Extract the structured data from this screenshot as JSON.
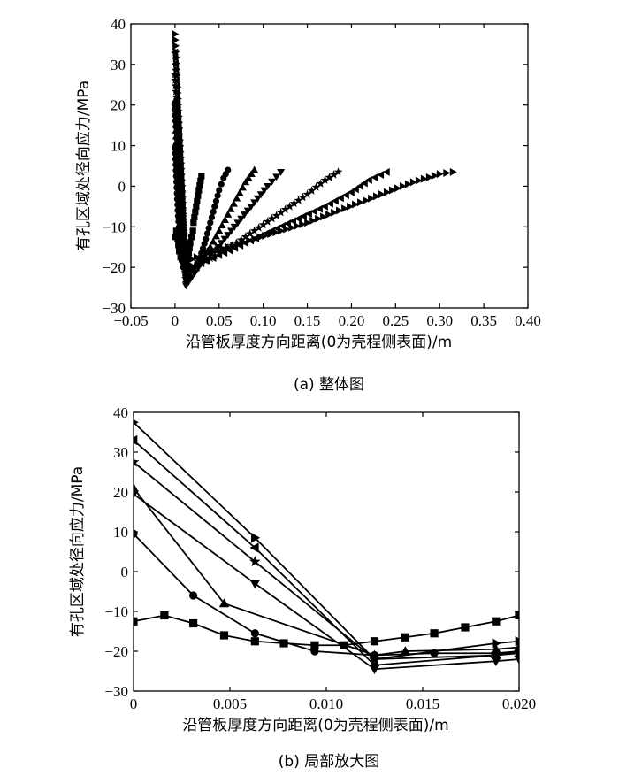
{
  "chart_data": [
    {
      "type": "scatter",
      "caption": "(a) 整体图",
      "xlabel": "沿管板厚度方向距离(0为壳程侧表面)/m",
      "ylabel": "有孔区域处径向应力/MPa",
      "xlim": [
        -0.05,
        0.4
      ],
      "ylim": [
        -30,
        40
      ],
      "xticks": [
        "−0.05",
        "0",
        "0.05",
        "0.10",
        "0.15",
        "0.20",
        "0.25",
        "0.30",
        "0.35",
        "0.40"
      ],
      "xtick_values": [
        -0.05,
        0,
        0.05,
        0.1,
        0.15,
        0.2,
        0.25,
        0.3,
        0.35,
        0.4
      ],
      "yticks": [
        "40",
        "30",
        "20",
        "10",
        "0",
        "−10",
        "−20",
        "−30"
      ],
      "ytick_values": [
        40,
        30,
        20,
        10,
        0,
        -10,
        -20,
        -30
      ],
      "series": [
        {
          "name": "square",
          "marker": "square",
          "dense": true,
          "x": [
            0,
            0.0015,
            0.003,
            0.0047,
            0.0063,
            0.0078,
            0.0094,
            0.011,
            0.0125,
            0.0141,
            0.0156,
            0.0172,
            0.0188,
            0.0203,
            0.021,
            0.024,
            0.027,
            0.03
          ],
          "y": [
            -12.5,
            -11,
            -13,
            -16,
            -17.5,
            -18,
            -18.5,
            -18.5,
            -18,
            -17,
            -16.5,
            -14,
            -12.5,
            -11,
            -9,
            -5,
            -1,
            2.5
          ]
        },
        {
          "name": "circle",
          "marker": "circle",
          "dense": true,
          "x": [
            0,
            0.0031,
            0.0063,
            0.0094,
            0.0125,
            0.0156,
            0.0188,
            0.025,
            0.03,
            0.035,
            0.04,
            0.045,
            0.05,
            0.055,
            0.06
          ],
          "y": [
            9.5,
            -6,
            -15.5,
            -20,
            -21,
            -20.5,
            -20.5,
            -19,
            -16.5,
            -13,
            -9,
            -5,
            -1,
            2,
            4
          ]
        },
        {
          "name": "triangle-up",
          "marker": "triangle-up",
          "dense": true,
          "x": [
            0,
            0.0047,
            0.0125,
            0.014,
            0.0188,
            0.03,
            0.04,
            0.05,
            0.06,
            0.07,
            0.08,
            0.09
          ],
          "y": [
            21,
            -8,
            -21,
            -20,
            -20,
            -18,
            -15,
            -11,
            -7,
            -3,
            1,
            4
          ]
        },
        {
          "name": "triangle-down",
          "marker": "triangle-down",
          "dense": true,
          "x": [
            0,
            0.0063,
            0.0125,
            0.0188,
            0.03,
            0.045,
            0.06,
            0.075,
            0.09,
            0.105,
            0.12
          ],
          "y": [
            19.5,
            -3,
            -24.5,
            -22.5,
            -19,
            -16,
            -12,
            -8,
            -4,
            0,
            3.5
          ]
        },
        {
          "name": "star",
          "marker": "star",
          "dense": true,
          "x": [
            0,
            0.0063,
            0.0125,
            0.0188,
            0.03,
            0.05,
            0.07,
            0.09,
            0.11,
            0.13,
            0.15,
            0.17,
            0.185
          ],
          "y": [
            27.5,
            2.5,
            -22,
            -21,
            -19,
            -16.5,
            -14,
            -11,
            -8,
            -5,
            -2,
            1.5,
            3.5
          ]
        },
        {
          "name": "triangle-left",
          "marker": "triangle-left",
          "dense": true,
          "x": [
            0,
            0.0063,
            0.0125,
            0.0188,
            0.03,
            0.05,
            0.08,
            0.11,
            0.14,
            0.17,
            0.2,
            0.22,
            0.24
          ],
          "y": [
            33,
            6,
            -23.5,
            -21,
            -19,
            -17,
            -14,
            -11,
            -8,
            -5,
            -1.5,
            1.5,
            3.5
          ]
        },
        {
          "name": "triangle-right",
          "marker": "triangle-right",
          "dense": true,
          "x": [
            0,
            0.0063,
            0.0125,
            0.0188,
            0.03,
            0.06,
            0.09,
            0.12,
            0.15,
            0.18,
            0.21,
            0.24,
            0.27,
            0.3,
            0.315
          ],
          "y": [
            37.5,
            8.5,
            -22,
            -18,
            -17,
            -15,
            -13,
            -11,
            -9,
            -6.5,
            -4,
            -1.5,
            1,
            3,
            3.5
          ]
        }
      ]
    },
    {
      "type": "line",
      "caption": "(b) 局部放大图",
      "xlabel": "沿管板厚度方向距离(0为壳程侧表面)/m",
      "ylabel": "有孔区域处径向应力/MPa",
      "xlim": [
        0,
        0.02
      ],
      "ylim": [
        -30,
        40
      ],
      "xticks": [
        "0",
        "0.005",
        "0.010",
        "0.015",
        "0.020"
      ],
      "xtick_values": [
        0,
        0.005,
        0.01,
        0.015,
        0.02
      ],
      "yticks": [
        "40",
        "30",
        "20",
        "10",
        "0",
        "−10",
        "−20",
        "−30"
      ],
      "ytick_values": [
        40,
        30,
        20,
        10,
        0,
        -10,
        -20,
        -30
      ],
      "series": [
        {
          "name": "square",
          "marker": "square",
          "x": [
            0,
            0.0016,
            0.0031,
            0.0047,
            0.0063,
            0.0078,
            0.0094,
            0.0109,
            0.0125,
            0.0141,
            0.0156,
            0.0172,
            0.0188,
            0.02
          ],
          "y": [
            -12.5,
            -11,
            -13,
            -16,
            -17.5,
            -18,
            -18.5,
            -18.5,
            -17.5,
            -16.5,
            -15.5,
            -14,
            -12.5,
            -11
          ]
        },
        {
          "name": "circle",
          "marker": "circle",
          "x": [
            0,
            0.0031,
            0.0063,
            0.0094,
            0.0125,
            0.0156,
            0.0188,
            0.02
          ],
          "y": [
            9.5,
            -6,
            -15.5,
            -20,
            -21,
            -20.5,
            -20.5,
            -20
          ]
        },
        {
          "name": "triangle-up",
          "marker": "triangle-up",
          "x": [
            0,
            0.0047,
            0.0125,
            0.0141,
            0.0188,
            0.02
          ],
          "y": [
            21,
            -8,
            -21,
            -20,
            -19.5,
            -19
          ]
        },
        {
          "name": "triangle-down",
          "marker": "triangle-down",
          "x": [
            0,
            0.0063,
            0.0125,
            0.0188,
            0.02
          ],
          "y": [
            19.5,
            -3,
            -24.5,
            -22.5,
            -22
          ]
        },
        {
          "name": "star",
          "marker": "star",
          "x": [
            0,
            0.0063,
            0.0125,
            0.0188,
            0.02
          ],
          "y": [
            27.5,
            2.5,
            -22,
            -21,
            -20.5
          ]
        },
        {
          "name": "triangle-left",
          "marker": "triangle-left",
          "x": [
            0,
            0.0063,
            0.0125,
            0.0188,
            0.02
          ],
          "y": [
            33,
            6,
            -23.5,
            -21,
            -20
          ]
        },
        {
          "name": "triangle-right",
          "marker": "triangle-right",
          "x": [
            0,
            0.0063,
            0.0125,
            0.0188,
            0.02
          ],
          "y": [
            37.5,
            8.5,
            -22,
            -18,
            -17.5
          ]
        }
      ]
    }
  ]
}
